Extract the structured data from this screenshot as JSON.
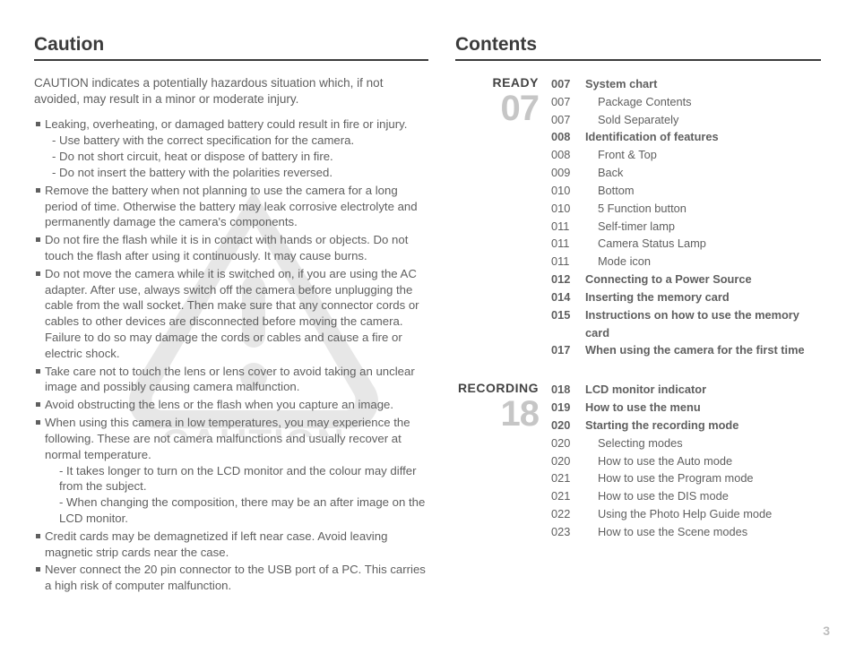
{
  "page_number": "3",
  "left": {
    "heading": "Caution",
    "intro": "CAUTION indicates a potentially hazardous situation which, if not avoided, may result in a minor or moderate injury.",
    "bullets": [
      {
        "text": "Leaking, overheating, or damaged battery could result in fire or injury.",
        "subs": [
          "- Use battery with the correct specification for the camera.",
          "- Do not short circuit, heat or dispose of battery in fire.",
          "- Do not insert the battery with the polarities reversed."
        ]
      },
      {
        "text": "Remove the battery when not planning to use the camera for a long period of time. Otherwise the battery may leak corrosive electrolyte and permanently damage the camera's components."
      },
      {
        "text": "Do not fire the flash while it is in contact with hands or objects. Do not touch the flash after using it continuously. It may cause burns."
      },
      {
        "text": "Do not move the camera while it is switched on, if you are using the AC adapter. After use, always switch off the camera before unplugging the cable from the wall socket. Then make sure that any connector cords or cables to other devices are disconnected before moving the camera. Failure to do so may damage the cords or cables and cause a fire or electric shock."
      },
      {
        "text": "Take care not to touch the lens or lens cover to avoid taking an unclear image and possibly causing camera malfunction."
      },
      {
        "text": "Avoid obstructing the lens or the flash when you capture an image."
      },
      {
        "text": "When using this camera in low temperatures, you may experience the following. These are not camera malfunctions and usually recover at normal temperature.",
        "subs": [
          "- It takes longer to turn on the LCD monitor and the colour may differ from the subject.",
          "- When changing the composition, there may be an after image on the LCD monitor."
        ],
        "subIndent": true
      },
      {
        "text": "Credit cards may be demagnetized if left near case. Avoid leaving magnetic strip cards near the case."
      },
      {
        "text": "Never connect the 20 pin connector to the USB port of a PC. This carries a high risk of computer malfunction."
      }
    ],
    "watermark_text": "CAUTION"
  },
  "right": {
    "heading": "Contents",
    "sections": [
      {
        "label": "READY",
        "bignum": "07",
        "entries": [
          {
            "page": "007",
            "title": "System chart",
            "bold": true
          },
          {
            "page": "007",
            "title": "Package Contents",
            "indent": true
          },
          {
            "page": "007",
            "title": "Sold Separately",
            "indent": true
          },
          {
            "page": "008",
            "title": "Identification of features",
            "bold": true
          },
          {
            "page": "008",
            "title": "Front & Top",
            "indent": true
          },
          {
            "page": "009",
            "title": "Back",
            "indent": true
          },
          {
            "page": "010",
            "title": "Bottom",
            "indent": true
          },
          {
            "page": "010",
            "title": "5 Function button",
            "indent": true
          },
          {
            "page": "011",
            "title": "Self-timer lamp",
            "indent": true
          },
          {
            "page": "011",
            "title": "Camera Status Lamp",
            "indent": true
          },
          {
            "page": "011",
            "title": "Mode icon",
            "indent": true
          },
          {
            "page": "012",
            "title": "Connecting to a Power Source",
            "bold": true
          },
          {
            "page": "014",
            "title": "Inserting the memory card",
            "bold": true
          },
          {
            "page": "015",
            "title": "Instructions on how to use the memory card",
            "bold": true
          },
          {
            "page": "017",
            "title": "When using the camera for the first time",
            "bold": true
          }
        ]
      },
      {
        "label": "RECORDING",
        "bignum": "18",
        "entries": [
          {
            "page": "018",
            "title": "LCD monitor indicator",
            "bold": true
          },
          {
            "page": "019",
            "title": "How to use the menu",
            "bold": true
          },
          {
            "page": "020",
            "title": "Starting the recording mode",
            "bold": true
          },
          {
            "page": "020",
            "title": "Selecting modes",
            "indent": true
          },
          {
            "page": "020",
            "title": "How to use the Auto mode",
            "indent": true
          },
          {
            "page": "021",
            "title": "How to use the Program mode",
            "indent": true
          },
          {
            "page": "021",
            "title": "How to use the DIS mode",
            "indent": true
          },
          {
            "page": "022",
            "title": "Using the Photo Help Guide mode",
            "indent": true
          },
          {
            "page": "023",
            "title": "How to use the Scene modes",
            "indent": true
          }
        ]
      }
    ]
  }
}
